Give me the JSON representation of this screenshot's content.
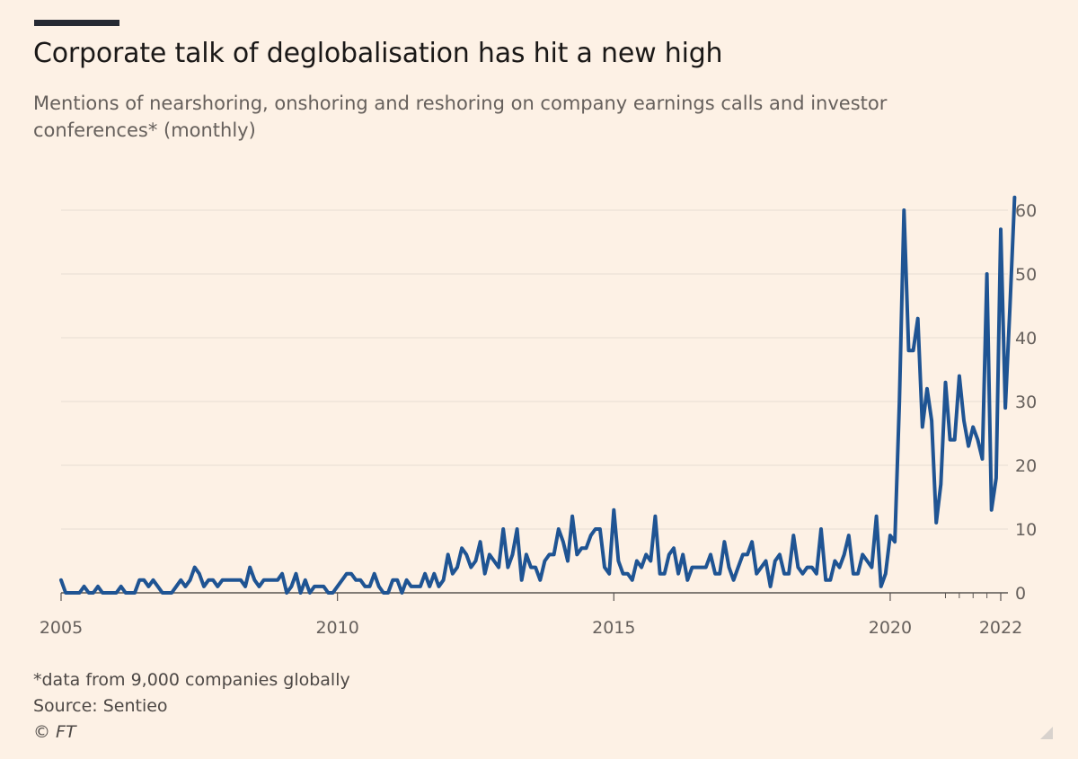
{
  "header": {
    "title": "Corporate talk of deglobalisation has hit a new high",
    "subtitle": "Mentions of nearshoring, onshoring and reshoring on company earnings calls and investor conferences* (monthly)"
  },
  "footer": {
    "footnote": "*data from 9,000 companies globally",
    "source": "Source: Sentieo",
    "credit": "© FT"
  },
  "colors": {
    "background": "#fdf1e5",
    "line": "#1f5493",
    "grid": "#e6ddd4",
    "axis_text": "#66605c"
  },
  "chart_data": {
    "type": "line",
    "title": "Corporate talk of deglobalisation has hit a new high",
    "xlabel": "",
    "ylabel": "",
    "x_start": "2005-01",
    "frequency": "monthly",
    "xlim": [
      2005.0,
      2022.0
    ],
    "ylim": [
      0,
      62
    ],
    "yticks": [
      0,
      10,
      20,
      30,
      40,
      50,
      60
    ],
    "xticks": [
      2005,
      2010,
      2015,
      2020,
      2022
    ],
    "minor_xticks": [
      2021,
      2021.25,
      2021.5,
      2021.75
    ],
    "grid": true,
    "y_axis_side": "right",
    "series": [
      {
        "name": "Mentions",
        "values": [
          2,
          0,
          0,
          0,
          0,
          1,
          0,
          0,
          1,
          0,
          0,
          0,
          0,
          1,
          0,
          0,
          0,
          2,
          2,
          1,
          2,
          1,
          0,
          0,
          0,
          1,
          2,
          1,
          2,
          4,
          3,
          1,
          2,
          2,
          1,
          2,
          2,
          2,
          2,
          2,
          1,
          4,
          2,
          1,
          2,
          2,
          2,
          2,
          3,
          0,
          1,
          3,
          0,
          2,
          0,
          1,
          1,
          1,
          0,
          0,
          1,
          2,
          3,
          3,
          2,
          2,
          1,
          1,
          3,
          1,
          0,
          0,
          2,
          2,
          0,
          2,
          1,
          1,
          1,
          3,
          1,
          3,
          1,
          2,
          6,
          3,
          4,
          7,
          6,
          4,
          5,
          8,
          3,
          6,
          5,
          4,
          10,
          4,
          6,
          10,
          2,
          6,
          4,
          4,
          2,
          5,
          6,
          6,
          10,
          8,
          5,
          12,
          6,
          7,
          7,
          9,
          10,
          10,
          4,
          3,
          13,
          5,
          3,
          3,
          2,
          5,
          4,
          6,
          5,
          12,
          3,
          3,
          6,
          7,
          3,
          6,
          2,
          4,
          4,
          4,
          4,
          6,
          3,
          3,
          8,
          4,
          2,
          4,
          6,
          6,
          8,
          3,
          4,
          5,
          1,
          5,
          6,
          3,
          3,
          9,
          4,
          3,
          4,
          4,
          3,
          10,
          2,
          2,
          5,
          4,
          6,
          9,
          3,
          3,
          6,
          5,
          4,
          12,
          1,
          3,
          9,
          8,
          30,
          60,
          38,
          38,
          43,
          26,
          32,
          27,
          11,
          17,
          33,
          24,
          24,
          34,
          27,
          23,
          26,
          24,
          21,
          50,
          13,
          18,
          57,
          29,
          45,
          62
        ]
      }
    ]
  }
}
